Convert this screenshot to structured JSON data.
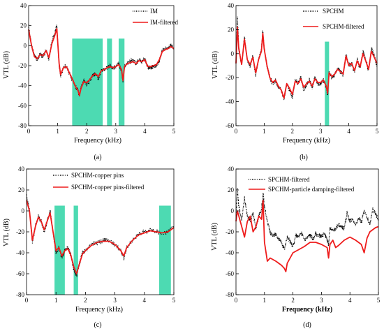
{
  "chart_data": [
    {
      "type": "line",
      "panel": "(a)",
      "xlabel": "Frequency (kHz)",
      "ylabel": "VTL (dB)",
      "xlim": [
        0,
        5
      ],
      "ylim": [
        -80,
        40
      ],
      "xticks": [
        0,
        1,
        2,
        3,
        4,
        5
      ],
      "yticks": [
        40,
        20,
        0,
        -20,
        -40,
        -60,
        -80
      ],
      "legend_position": "top-right",
      "bands": [
        [
          1.5,
          2.55
        ],
        [
          2.7,
          2.87
        ],
        [
          3.1,
          3.3
        ]
      ],
      "band_top": 7,
      "series": [
        {
          "name": "IM",
          "style": "dotted",
          "color": "#000000",
          "x": [
            0,
            0.1,
            0.2,
            0.3,
            0.4,
            0.5,
            0.6,
            0.7,
            0.8,
            0.9,
            0.97,
            1.05,
            1.1,
            1.2,
            1.3,
            1.4,
            1.5,
            1.6,
            1.7,
            1.75,
            1.8,
            1.9,
            2.0,
            2.1,
            2.2,
            2.3,
            2.4,
            2.5,
            2.6,
            2.7,
            2.8,
            2.9,
            3.0,
            3.1,
            3.2,
            3.25,
            3.3,
            3.4,
            3.5,
            3.6,
            3.7,
            3.8,
            3.9,
            4.0,
            4.1,
            4.2,
            4.3,
            4.4,
            4.5,
            4.6,
            4.7,
            4.8,
            4.9,
            5.0
          ],
          "y": [
            20,
            0,
            -10,
            -14,
            -8,
            -11,
            -4,
            -14,
            5,
            12,
            20,
            -20,
            -30,
            -22,
            -20,
            -28,
            -33,
            -40,
            -45,
            -50,
            -42,
            -35,
            -38,
            -35,
            -30,
            -28,
            -33,
            -25,
            -24,
            -22,
            -20,
            -22,
            -21,
            -18,
            -25,
            -37,
            -20,
            -17,
            -16,
            -15,
            -18,
            -14,
            -16,
            -13,
            -22,
            -22,
            -21,
            -20,
            -15,
            -5,
            -3,
            -2,
            0,
            -2
          ]
        },
        {
          "name": "IM-filtered",
          "style": "solid",
          "color": "#ee1c1c",
          "x": [
            0,
            0.1,
            0.2,
            0.3,
            0.4,
            0.5,
            0.6,
            0.7,
            0.8,
            0.9,
            0.97,
            1.05,
            1.1,
            1.2,
            1.3,
            1.4,
            1.5,
            1.6,
            1.7,
            1.75,
            1.8,
            1.9,
            2.0,
            2.1,
            2.2,
            2.3,
            2.4,
            2.5,
            2.6,
            2.7,
            2.8,
            2.9,
            3.0,
            3.1,
            3.2,
            3.25,
            3.3,
            3.4,
            3.5,
            3.6,
            3.7,
            3.8,
            3.9,
            4.0,
            4.1,
            4.2,
            4.3,
            4.4,
            4.5,
            4.6,
            4.7,
            4.8,
            4.9,
            5.0
          ],
          "y": [
            16,
            0,
            -11,
            -13,
            -9,
            -10,
            -5,
            -12,
            2,
            10,
            17,
            -18,
            -29,
            -22,
            -21,
            -27,
            -33,
            -40,
            -45,
            -50,
            -43,
            -36,
            -37,
            -34,
            -30,
            -28,
            -31,
            -25,
            -24,
            -22,
            -21,
            -22,
            -21,
            -19,
            -24,
            -35,
            -21,
            -18,
            -17,
            -16,
            -18,
            -15,
            -16,
            -14,
            -21,
            -21,
            -20,
            -19,
            -14,
            -6,
            -4,
            -3,
            -1,
            -3
          ]
        }
      ]
    },
    {
      "type": "line",
      "panel": "(b)",
      "xlabel": "Frequency (kHz)",
      "ylabel": "VTL (dB)",
      "xlim": [
        0,
        5
      ],
      "ylim": [
        -60,
        40
      ],
      "xticks": [
        0,
        1,
        2,
        3,
        4,
        5
      ],
      "yticks": [
        40,
        20,
        0,
        -20,
        -40,
        -60
      ],
      "legend_position": "top-right",
      "bands": [
        [
          3.15,
          3.3
        ]
      ],
      "band_top": 10,
      "series": [
        {
          "name": "SPCHM",
          "style": "dotted",
          "color": "#000000",
          "x": [
            0,
            0.05,
            0.1,
            0.2,
            0.3,
            0.4,
            0.5,
            0.6,
            0.7,
            0.8,
            0.9,
            0.95,
            1.0,
            1.1,
            1.2,
            1.3,
            1.4,
            1.5,
            1.6,
            1.7,
            1.8,
            1.9,
            2.0,
            2.1,
            2.2,
            2.3,
            2.4,
            2.5,
            2.6,
            2.7,
            2.8,
            2.9,
            3.0,
            3.1,
            3.2,
            3.25,
            3.3,
            3.4,
            3.5,
            3.6,
            3.7,
            3.8,
            3.9,
            4.0,
            4.1,
            4.2,
            4.3,
            4.4,
            4.5,
            4.6,
            4.7,
            4.8,
            4.9,
            5.0
          ],
          "y": [
            -10,
            32,
            5,
            -10,
            15,
            -5,
            -10,
            -2,
            -18,
            -5,
            3,
            20,
            5,
            -10,
            -20,
            -25,
            -22,
            -28,
            -30,
            -38,
            -25,
            -30,
            -36,
            -22,
            -25,
            -20,
            -30,
            -26,
            -22,
            -28,
            -20,
            -25,
            -25,
            -22,
            -28,
            -35,
            -15,
            -20,
            -18,
            -12,
            -15,
            -18,
            0,
            -10,
            -8,
            -15,
            -5,
            -12,
            2,
            -5,
            -15,
            5,
            -2,
            -10
          ]
        },
        {
          "name": "SPCHM-filtered",
          "style": "solid",
          "color": "#ee1c1c",
          "x": [
            0,
            0.05,
            0.1,
            0.2,
            0.3,
            0.4,
            0.5,
            0.6,
            0.7,
            0.8,
            0.9,
            0.95,
            1.0,
            1.1,
            1.2,
            1.3,
            1.4,
            1.5,
            1.6,
            1.7,
            1.8,
            1.9,
            2.0,
            2.1,
            2.2,
            2.3,
            2.4,
            2.5,
            2.6,
            2.7,
            2.8,
            2.9,
            3.0,
            3.1,
            3.2,
            3.25,
            3.3,
            3.4,
            3.5,
            3.6,
            3.7,
            3.8,
            3.9,
            4.0,
            4.1,
            4.2,
            4.3,
            4.4,
            4.5,
            4.6,
            4.7,
            4.8,
            4.9,
            5.0
          ],
          "y": [
            -8,
            22,
            4,
            -9,
            12,
            -5,
            -9,
            -3,
            -16,
            -5,
            2,
            17,
            4,
            -10,
            -20,
            -24,
            -22,
            -27,
            -30,
            -37,
            -25,
            -29,
            -34,
            -23,
            -25,
            -21,
            -28,
            -25,
            -23,
            -27,
            -21,
            -24,
            -24,
            -22,
            -27,
            -33,
            -16,
            -19,
            -17,
            -13,
            -15,
            -17,
            -2,
            -10,
            -8,
            -14,
            -6,
            -11,
            0,
            -6,
            -13,
            2,
            -3,
            -8
          ]
        }
      ]
    },
    {
      "type": "line",
      "panel": "(c)",
      "xlabel": "Frequency (kHz)",
      "ylabel": "VTL (dB)",
      "xlim": [
        0,
        5
      ],
      "ylim": [
        -80,
        40
      ],
      "xticks": [
        0,
        1,
        2,
        3,
        4,
        5
      ],
      "yticks": [
        40,
        20,
        0,
        -20,
        -40,
        -60,
        -80
      ],
      "legend_position": "top-right",
      "bands": [
        [
          0.95,
          1.3
        ],
        [
          1.6,
          1.75
        ],
        [
          4.5,
          4.9
        ]
      ],
      "band_top": 5,
      "series": [
        {
          "name": "SPCHM-copper pins",
          "style": "dotted",
          "color": "#000000",
          "x": [
            0,
            0.1,
            0.2,
            0.3,
            0.4,
            0.5,
            0.6,
            0.7,
            0.8,
            0.9,
            1.0,
            1.1,
            1.2,
            1.3,
            1.4,
            1.5,
            1.6,
            1.7,
            1.8,
            1.9,
            2.0,
            2.2,
            2.4,
            2.6,
            2.8,
            3.0,
            3.2,
            3.3,
            3.4,
            3.6,
            3.8,
            4.0,
            4.2,
            4.4,
            4.6,
            4.8,
            5.0
          ],
          "y": [
            15,
            0,
            -30,
            -15,
            -5,
            -10,
            -20,
            -10,
            0,
            -20,
            -40,
            -35,
            -45,
            -38,
            -35,
            -42,
            -55,
            -62,
            -50,
            -40,
            -38,
            -32,
            -30,
            -28,
            -28,
            -32,
            -38,
            -45,
            -35,
            -28,
            -22,
            -20,
            -18,
            -20,
            -22,
            -20,
            -15
          ]
        },
        {
          "name": "SPCHM-copper pins-filtered",
          "style": "solid",
          "color": "#ee1c1c",
          "x": [
            0,
            0.1,
            0.2,
            0.3,
            0.4,
            0.5,
            0.6,
            0.7,
            0.8,
            0.9,
            1.0,
            1.1,
            1.2,
            1.3,
            1.4,
            1.5,
            1.6,
            1.7,
            1.8,
            1.9,
            2.0,
            2.2,
            2.4,
            2.6,
            2.8,
            3.0,
            3.2,
            3.3,
            3.4,
            3.6,
            3.8,
            4.0,
            4.2,
            4.4,
            4.6,
            4.8,
            5.0
          ],
          "y": [
            10,
            0,
            -28,
            -15,
            -6,
            -10,
            -18,
            -10,
            -2,
            -20,
            -38,
            -35,
            -43,
            -38,
            -36,
            -42,
            -53,
            -60,
            -50,
            -41,
            -38,
            -33,
            -30,
            -29,
            -29,
            -32,
            -38,
            -43,
            -35,
            -28,
            -23,
            -21,
            -19,
            -20,
            -21,
            -20,
            -16
          ]
        }
      ]
    },
    {
      "type": "line",
      "panel": "(d)",
      "xlabel": "Frequency (kHz)",
      "ylabel": "VTL (dB)",
      "xlim": [
        0,
        5
      ],
      "ylim": [
        -80,
        40
      ],
      "xticks": [
        0,
        1,
        2,
        3,
        4,
        5
      ],
      "yticks": [
        40,
        20,
        0,
        -20,
        -40,
        -60,
        -80
      ],
      "legend_position": "top-right",
      "bands": [],
      "series": [
        {
          "name": "SPCHM-filtered",
          "style": "dotted",
          "color": "#000000",
          "x": [
            0,
            0.05,
            0.1,
            0.2,
            0.3,
            0.4,
            0.5,
            0.6,
            0.7,
            0.8,
            0.9,
            0.95,
            1.0,
            1.1,
            1.2,
            1.3,
            1.4,
            1.5,
            1.6,
            1.7,
            1.8,
            1.9,
            2.0,
            2.1,
            2.2,
            2.3,
            2.4,
            2.5,
            2.6,
            2.7,
            2.8,
            2.9,
            3.0,
            3.1,
            3.2,
            3.25,
            3.3,
            3.4,
            3.5,
            3.6,
            3.7,
            3.8,
            3.9,
            4.0,
            4.1,
            4.2,
            4.3,
            4.4,
            4.5,
            4.6,
            4.7,
            4.8,
            4.9,
            5.0
          ],
          "y": [
            -8,
            22,
            4,
            -9,
            12,
            -5,
            -9,
            -3,
            -16,
            -5,
            2,
            17,
            4,
            -10,
            -20,
            -24,
            -22,
            -27,
            -30,
            -37,
            -25,
            -29,
            -34,
            -23,
            -25,
            -21,
            -28,
            -25,
            -23,
            -27,
            -21,
            -24,
            -24,
            -22,
            -27,
            -33,
            -16,
            -19,
            -17,
            -13,
            -15,
            -17,
            -2,
            -10,
            -8,
            -14,
            -6,
            -11,
            0,
            -6,
            -13,
            2,
            -3,
            -8
          ]
        },
        {
          "name": "SPCHM-particle damping-filtered",
          "style": "solid",
          "color": "#ee1c1c",
          "x": [
            0,
            0.05,
            0.1,
            0.2,
            0.3,
            0.4,
            0.5,
            0.6,
            0.7,
            0.8,
            0.9,
            0.95,
            1.0,
            1.1,
            1.2,
            1.4,
            1.6,
            1.7,
            1.75,
            1.8,
            1.9,
            2.0,
            2.2,
            2.4,
            2.6,
            2.8,
            3.0,
            3.2,
            3.25,
            3.3,
            3.4,
            3.5,
            3.6,
            3.8,
            4.0,
            4.2,
            4.4,
            4.5,
            4.6,
            4.7,
            4.8,
            4.9,
            5.0
          ],
          "y": [
            -10,
            0,
            -5,
            -15,
            -25,
            -10,
            -5,
            -20,
            -15,
            -5,
            -8,
            10,
            -30,
            -48,
            -45,
            -48,
            -52,
            -55,
            -58,
            -50,
            -45,
            -40,
            -37,
            -34,
            -30,
            -30,
            -32,
            -35,
            -45,
            -32,
            -28,
            -35,
            -33,
            -28,
            -25,
            -28,
            -32,
            -40,
            -26,
            -20,
            -18,
            -16,
            -15
          ]
        }
      ]
    }
  ]
}
